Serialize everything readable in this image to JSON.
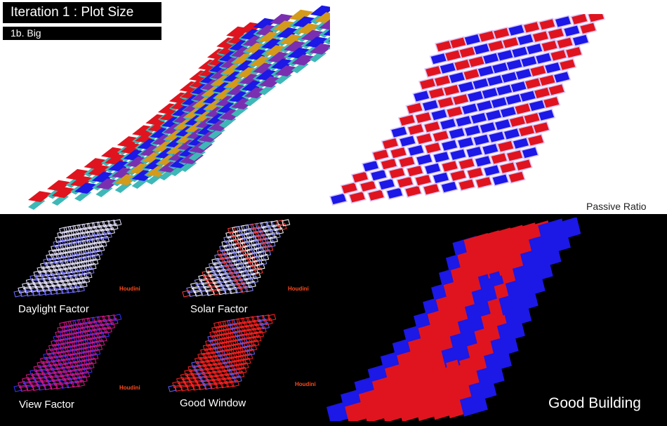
{
  "header": {
    "title": "Iteration 1 : Plot Size",
    "subtitle": "1b. Big"
  },
  "top_right_caption": "Passive Ratio",
  "thumbnails": [
    {
      "label": "Daylight Factor",
      "watermark": "Houdini"
    },
    {
      "label": "Solar Factor",
      "watermark": "Houdini"
    },
    {
      "label": "View Factor",
      "watermark": "Houdini"
    },
    {
      "label": "Good Window",
      "watermark": "Houdini"
    }
  ],
  "main_caption": "Good Building",
  "colors": {
    "red": "#e0141e",
    "blue": "#1c18e6",
    "purple": "#7a2fb0",
    "gold": "#d49a1c",
    "teal": "#3fb7b7",
    "background_bottom": "#000000"
  }
}
